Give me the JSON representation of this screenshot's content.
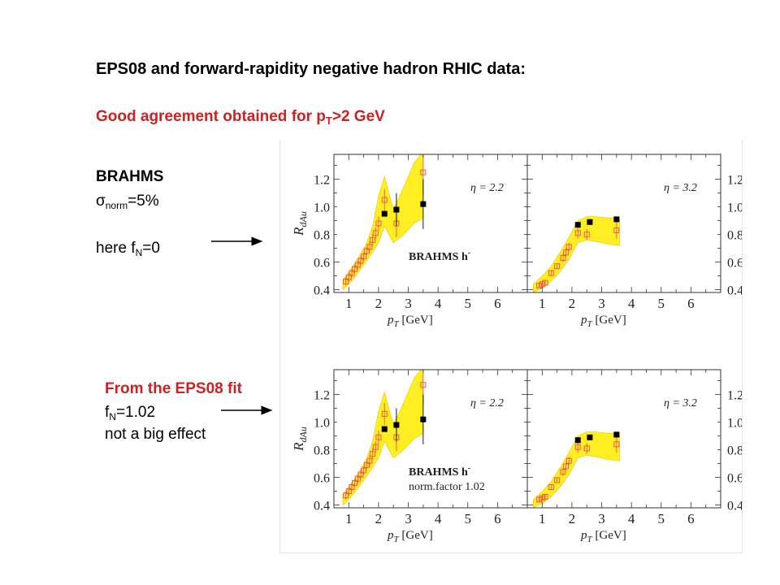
{
  "slide": {
    "title": "EPS08 and forward-rapidity negative hadron RHIC data:",
    "subtitle_main": "Good agreement obtained for p",
    "subtitle_sub": "T",
    "subtitle_tail": ">2 GeV"
  },
  "notes": {
    "brahms": "BRAHMS",
    "sigma_main": "σ",
    "sigma_sub": "norm",
    "sigma_tail": "=5%",
    "here_main": "here f",
    "here_sub": "N",
    "here_tail": "=0",
    "fit_title": "From the EPS08 fit",
    "fn_main": "f",
    "fn_sub": "N",
    "fn_tail": "=1.02",
    "effect": "not a big effect"
  },
  "colors": {
    "band": "#ffee22",
    "band_edge": "#e0c800",
    "open_marker": "#ee5555",
    "filled_marker": "#000000",
    "accent_red": "#dd2222"
  },
  "chart_data": [
    {
      "type": "scatter",
      "label": "BRAHMS h",
      "label_sup": "-",
      "annotation": "",
      "xlabel_main": "p",
      "xlabel_sub": "T",
      "xlabel_tail": " [GeV]",
      "ylabel_main": "R",
      "ylabel_sub": "dAu",
      "xlim": [
        0.5,
        7
      ],
      "ylim": [
        0.38,
        1.38
      ],
      "xticks": [
        "1",
        "2",
        "3",
        "4",
        "5",
        "6"
      ],
      "yticks": [
        "0.4",
        "0.6",
        "0.8",
        "1.0",
        "1.2"
      ],
      "panels": [
        {
          "eta_label": "η = 2.2",
          "band": {
            "x": [
              0.8,
              1.0,
              1.2,
              1.4,
              1.6,
              1.8,
              2.0,
              2.2,
              2.5,
              2.8,
              3.2,
              3.5
            ],
            "lower": [
              0.4,
              0.44,
              0.49,
              0.55,
              0.61,
              0.67,
              0.74,
              0.86,
              0.74,
              0.79,
              0.88,
              0.92
            ],
            "upper": [
              0.47,
              0.53,
              0.59,
              0.66,
              0.74,
              0.86,
              1.08,
              1.22,
              0.98,
              1.12,
              1.32,
              1.4
            ]
          },
          "open_points": {
            "x": [
              0.9,
              1.0,
              1.1,
              1.2,
              1.3,
              1.4,
              1.5,
              1.6,
              1.7,
              1.8,
              1.9,
              2.0,
              2.2,
              2.6,
              3.5
            ],
            "y": [
              0.46,
              0.49,
              0.52,
              0.55,
              0.58,
              0.61,
              0.64,
              0.68,
              0.71,
              0.76,
              0.81,
              0.88,
              1.05,
              0.88,
              1.25
            ],
            "err": [
              0.03,
              0.03,
              0.03,
              0.03,
              0.03,
              0.03,
              0.03,
              0.03,
              0.04,
              0.04,
              0.04,
              0.05,
              0.08,
              0.1,
              0.15
            ]
          },
          "filled_points": {
            "x": [
              2.2,
              2.6,
              3.5
            ],
            "y": [
              0.95,
              0.98,
              1.02
            ],
            "err": [
              0.02,
              0.12,
              0.18
            ]
          }
        },
        {
          "eta_label": "η = 3.2",
          "band": {
            "x": [
              0.7,
              1.0,
              1.3,
              1.6,
              1.9,
              2.2,
              2.5,
              2.8,
              3.2,
              3.6
            ],
            "lower": [
              0.38,
              0.41,
              0.46,
              0.53,
              0.62,
              0.74,
              0.76,
              0.75,
              0.73,
              0.72
            ],
            "upper": [
              0.44,
              0.5,
              0.57,
              0.67,
              0.78,
              0.9,
              0.93,
              0.93,
              0.92,
              0.92
            ]
          },
          "open_points": {
            "x": [
              0.9,
              1.0,
              1.1,
              1.3,
              1.5,
              1.7,
              1.8,
              1.9,
              2.2,
              2.5,
              3.5
            ],
            "y": [
              0.43,
              0.44,
              0.45,
              0.52,
              0.57,
              0.63,
              0.67,
              0.71,
              0.81,
              0.8,
              0.83
            ],
            "err": [
              0.02,
              0.02,
              0.02,
              0.02,
              0.02,
              0.03,
              0.03,
              0.03,
              0.04,
              0.04,
              0.06
            ]
          },
          "filled_points": {
            "x": [
              2.2,
              2.6,
              3.5
            ],
            "y": [
              0.87,
              0.89,
              0.91
            ],
            "err": [
              0.02,
              0.02,
              0.02
            ]
          }
        }
      ]
    },
    {
      "type": "scatter",
      "label": "BRAHMS h",
      "label_sup": "-",
      "annotation": "norm.factor 1.02",
      "xlabel_main": "p",
      "xlabel_sub": "T",
      "xlabel_tail": " [GeV]",
      "ylabel_main": "R",
      "ylabel_sub": "dAu",
      "xlim": [
        0.5,
        7
      ],
      "ylim": [
        0.38,
        1.38
      ],
      "xticks": [
        "1",
        "2",
        "3",
        "4",
        "5",
        "6"
      ],
      "yticks": [
        "0.4",
        "0.6",
        "0.8",
        "1.0",
        "1.2"
      ],
      "panels": [
        {
          "eta_label": "η = 2.2",
          "band": {
            "x": [
              0.8,
              1.0,
              1.2,
              1.4,
              1.6,
              1.8,
              2.0,
              2.2,
              2.5,
              2.8,
              3.2,
              3.5
            ],
            "lower": [
              0.4,
              0.44,
              0.49,
              0.55,
              0.61,
              0.67,
              0.74,
              0.86,
              0.74,
              0.79,
              0.88,
              0.92
            ],
            "upper": [
              0.47,
              0.53,
              0.59,
              0.66,
              0.74,
              0.86,
              1.08,
              1.22,
              0.98,
              1.12,
              1.32,
              1.4
            ]
          },
          "open_points": {
            "x": [
              0.9,
              1.0,
              1.1,
              1.2,
              1.3,
              1.4,
              1.5,
              1.6,
              1.7,
              1.8,
              1.9,
              2.0,
              2.2,
              2.6,
              3.5
            ],
            "y": [
              0.47,
              0.5,
              0.53,
              0.56,
              0.59,
              0.62,
              0.65,
              0.69,
              0.72,
              0.77,
              0.82,
              0.89,
              1.06,
              0.89,
              1.27
            ],
            "err": [
              0.03,
              0.03,
              0.03,
              0.03,
              0.03,
              0.03,
              0.03,
              0.03,
              0.04,
              0.04,
              0.04,
              0.05,
              0.08,
              0.1,
              0.15
            ]
          },
          "filled_points": {
            "x": [
              2.2,
              2.6,
              3.5
            ],
            "y": [
              0.95,
              0.98,
              1.02
            ],
            "err": [
              0.02,
              0.12,
              0.18
            ]
          }
        },
        {
          "eta_label": "η = 3.2",
          "band": {
            "x": [
              0.7,
              1.0,
              1.3,
              1.6,
              1.9,
              2.2,
              2.5,
              2.8,
              3.2,
              3.6
            ],
            "lower": [
              0.38,
              0.41,
              0.46,
              0.53,
              0.62,
              0.74,
              0.76,
              0.75,
              0.73,
              0.72
            ],
            "upper": [
              0.44,
              0.5,
              0.57,
              0.67,
              0.78,
              0.9,
              0.93,
              0.93,
              0.92,
              0.92
            ]
          },
          "open_points": {
            "x": [
              0.9,
              1.0,
              1.1,
              1.3,
              1.5,
              1.7,
              1.8,
              1.9,
              2.2,
              2.5,
              3.5
            ],
            "y": [
              0.44,
              0.45,
              0.46,
              0.53,
              0.58,
              0.64,
              0.68,
              0.72,
              0.82,
              0.81,
              0.84
            ],
            "err": [
              0.02,
              0.02,
              0.02,
              0.02,
              0.02,
              0.03,
              0.03,
              0.03,
              0.04,
              0.04,
              0.06
            ]
          },
          "filled_points": {
            "x": [
              2.2,
              2.6,
              3.5
            ],
            "y": [
              0.87,
              0.89,
              0.91
            ],
            "err": [
              0.02,
              0.02,
              0.02
            ]
          }
        }
      ]
    }
  ]
}
